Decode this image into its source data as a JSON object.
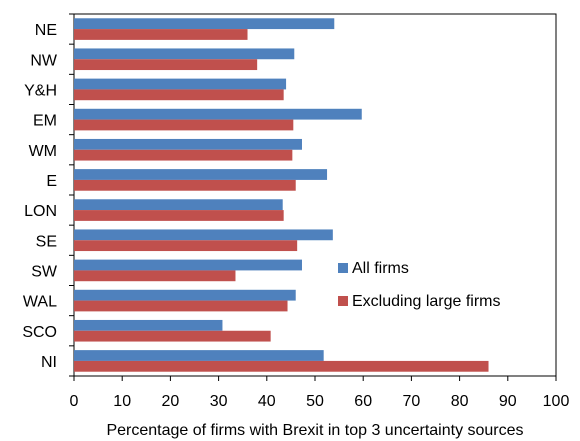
{
  "chart_data": {
    "type": "bar",
    "orientation": "horizontal",
    "categories": [
      "NE",
      "NW",
      "Y&H",
      "EM",
      "WM",
      "E",
      "LON",
      "SE",
      "SW",
      "WAL",
      "SCO",
      "NI"
    ],
    "series": [
      {
        "name": "All firms",
        "color": "#4F81BD",
        "values": [
          54,
          45.7,
          44,
          59.7,
          47.3,
          52.5,
          43.3,
          53.7,
          47.3,
          46,
          30.8,
          51.8
        ]
      },
      {
        "name": "Excluding large firms",
        "color": "#C0504D",
        "values": [
          36,
          38,
          43.5,
          45.5,
          45.3,
          46,
          43.5,
          46.3,
          33.5,
          44.3,
          40.8,
          86
        ]
      }
    ],
    "xlabel": "Percentage of firms with Brexit in top 3 uncertainty sources",
    "ylabel": "",
    "xlim": [
      0,
      100
    ],
    "xticks": [
      0,
      10,
      20,
      30,
      40,
      50,
      60,
      70,
      80,
      90,
      100
    ],
    "grid": false,
    "legend_position": "lower-right"
  }
}
